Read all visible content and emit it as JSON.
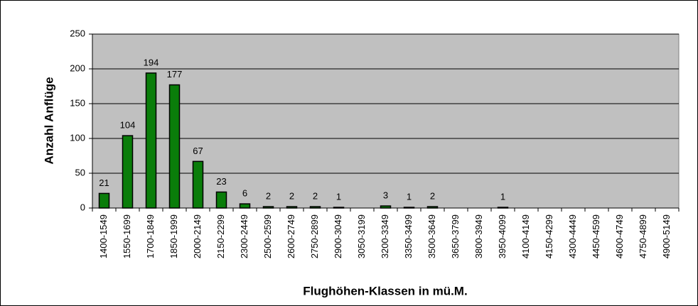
{
  "chart_data": {
    "type": "bar",
    "xlabel": "Flughöhen-Klassen in mü.M.",
    "ylabel": "Anzahl Anflüge",
    "categories": [
      "1400-1549",
      "1550-1699",
      "1700-1849",
      "1850-1999",
      "2000-2149",
      "2150-2299",
      "2300-2449",
      "2500-2599",
      "2600-2749",
      "2750-2899",
      "2900-3049",
      "3050-3199",
      "3200-3349",
      "3350-3499",
      "3500-3649",
      "3650-3799",
      "3800-3949",
      "3950-4099",
      "4100-4149",
      "4150-4299",
      "4300-4449",
      "4450-4599",
      "4600-4749",
      "4750-4899",
      "4900-5149"
    ],
    "values": [
      21,
      104,
      194,
      177,
      67,
      23,
      6,
      2,
      2,
      2,
      1,
      null,
      3,
      1,
      2,
      null,
      null,
      1,
      null,
      null,
      null,
      null,
      null,
      null,
      null
    ],
    "color": "#0a7d0a",
    "ylim": [
      0,
      250
    ],
    "yticks": [
      0,
      50,
      100,
      150,
      200,
      250
    ],
    "grid": true
  }
}
